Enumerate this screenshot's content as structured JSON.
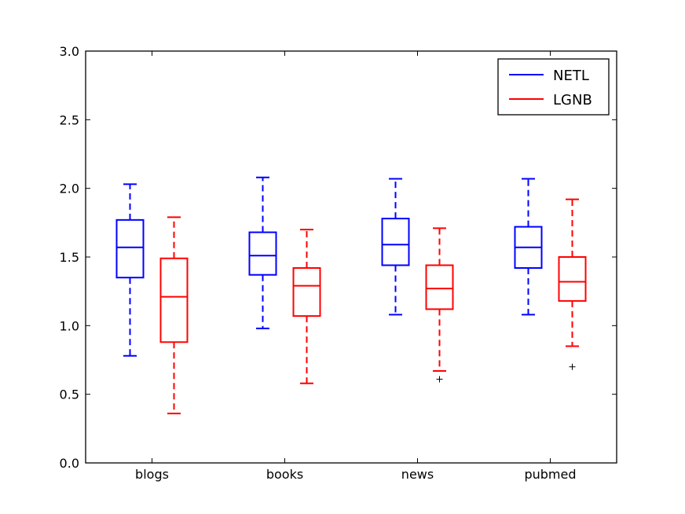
{
  "chart_data": {
    "type": "boxplot",
    "title": "",
    "xlabel": "",
    "ylabel": "",
    "categories": [
      "blogs",
      "books",
      "news",
      "pubmed"
    ],
    "ylim": [
      0.0,
      3.0
    ],
    "yticks": [
      "0.0",
      "0.5",
      "1.0",
      "1.5",
      "2.0",
      "2.5",
      "3.0"
    ],
    "grid": false,
    "legend_position": "top-right",
    "series": [
      {
        "name": "NETL",
        "color": "#0000ff",
        "boxes": [
          {
            "whisker_low": 0.78,
            "q1": 1.35,
            "median": 1.57,
            "q3": 1.77,
            "whisker_high": 2.03,
            "outliers": []
          },
          {
            "whisker_low": 0.98,
            "q1": 1.37,
            "median": 1.51,
            "q3": 1.68,
            "whisker_high": 2.08,
            "outliers": []
          },
          {
            "whisker_low": 1.08,
            "q1": 1.44,
            "median": 1.59,
            "q3": 1.78,
            "whisker_high": 2.07,
            "outliers": []
          },
          {
            "whisker_low": 1.08,
            "q1": 1.42,
            "median": 1.57,
            "q3": 1.72,
            "whisker_high": 2.07,
            "outliers": []
          }
        ]
      },
      {
        "name": "LGNB",
        "color": "#ff0000",
        "boxes": [
          {
            "whisker_low": 0.36,
            "q1": 0.88,
            "median": 1.21,
            "q3": 1.49,
            "whisker_high": 1.79,
            "outliers": []
          },
          {
            "whisker_low": 0.58,
            "q1": 1.07,
            "median": 1.29,
            "q3": 1.42,
            "whisker_high": 1.7,
            "outliers": []
          },
          {
            "whisker_low": 0.67,
            "q1": 1.12,
            "median": 1.27,
            "q3": 1.44,
            "whisker_high": 1.71,
            "outliers": [
              0.61
            ]
          },
          {
            "whisker_low": 0.85,
            "q1": 1.18,
            "median": 1.32,
            "q3": 1.5,
            "whisker_high": 1.92,
            "outliers": [
              0.7
            ]
          }
        ]
      }
    ]
  }
}
